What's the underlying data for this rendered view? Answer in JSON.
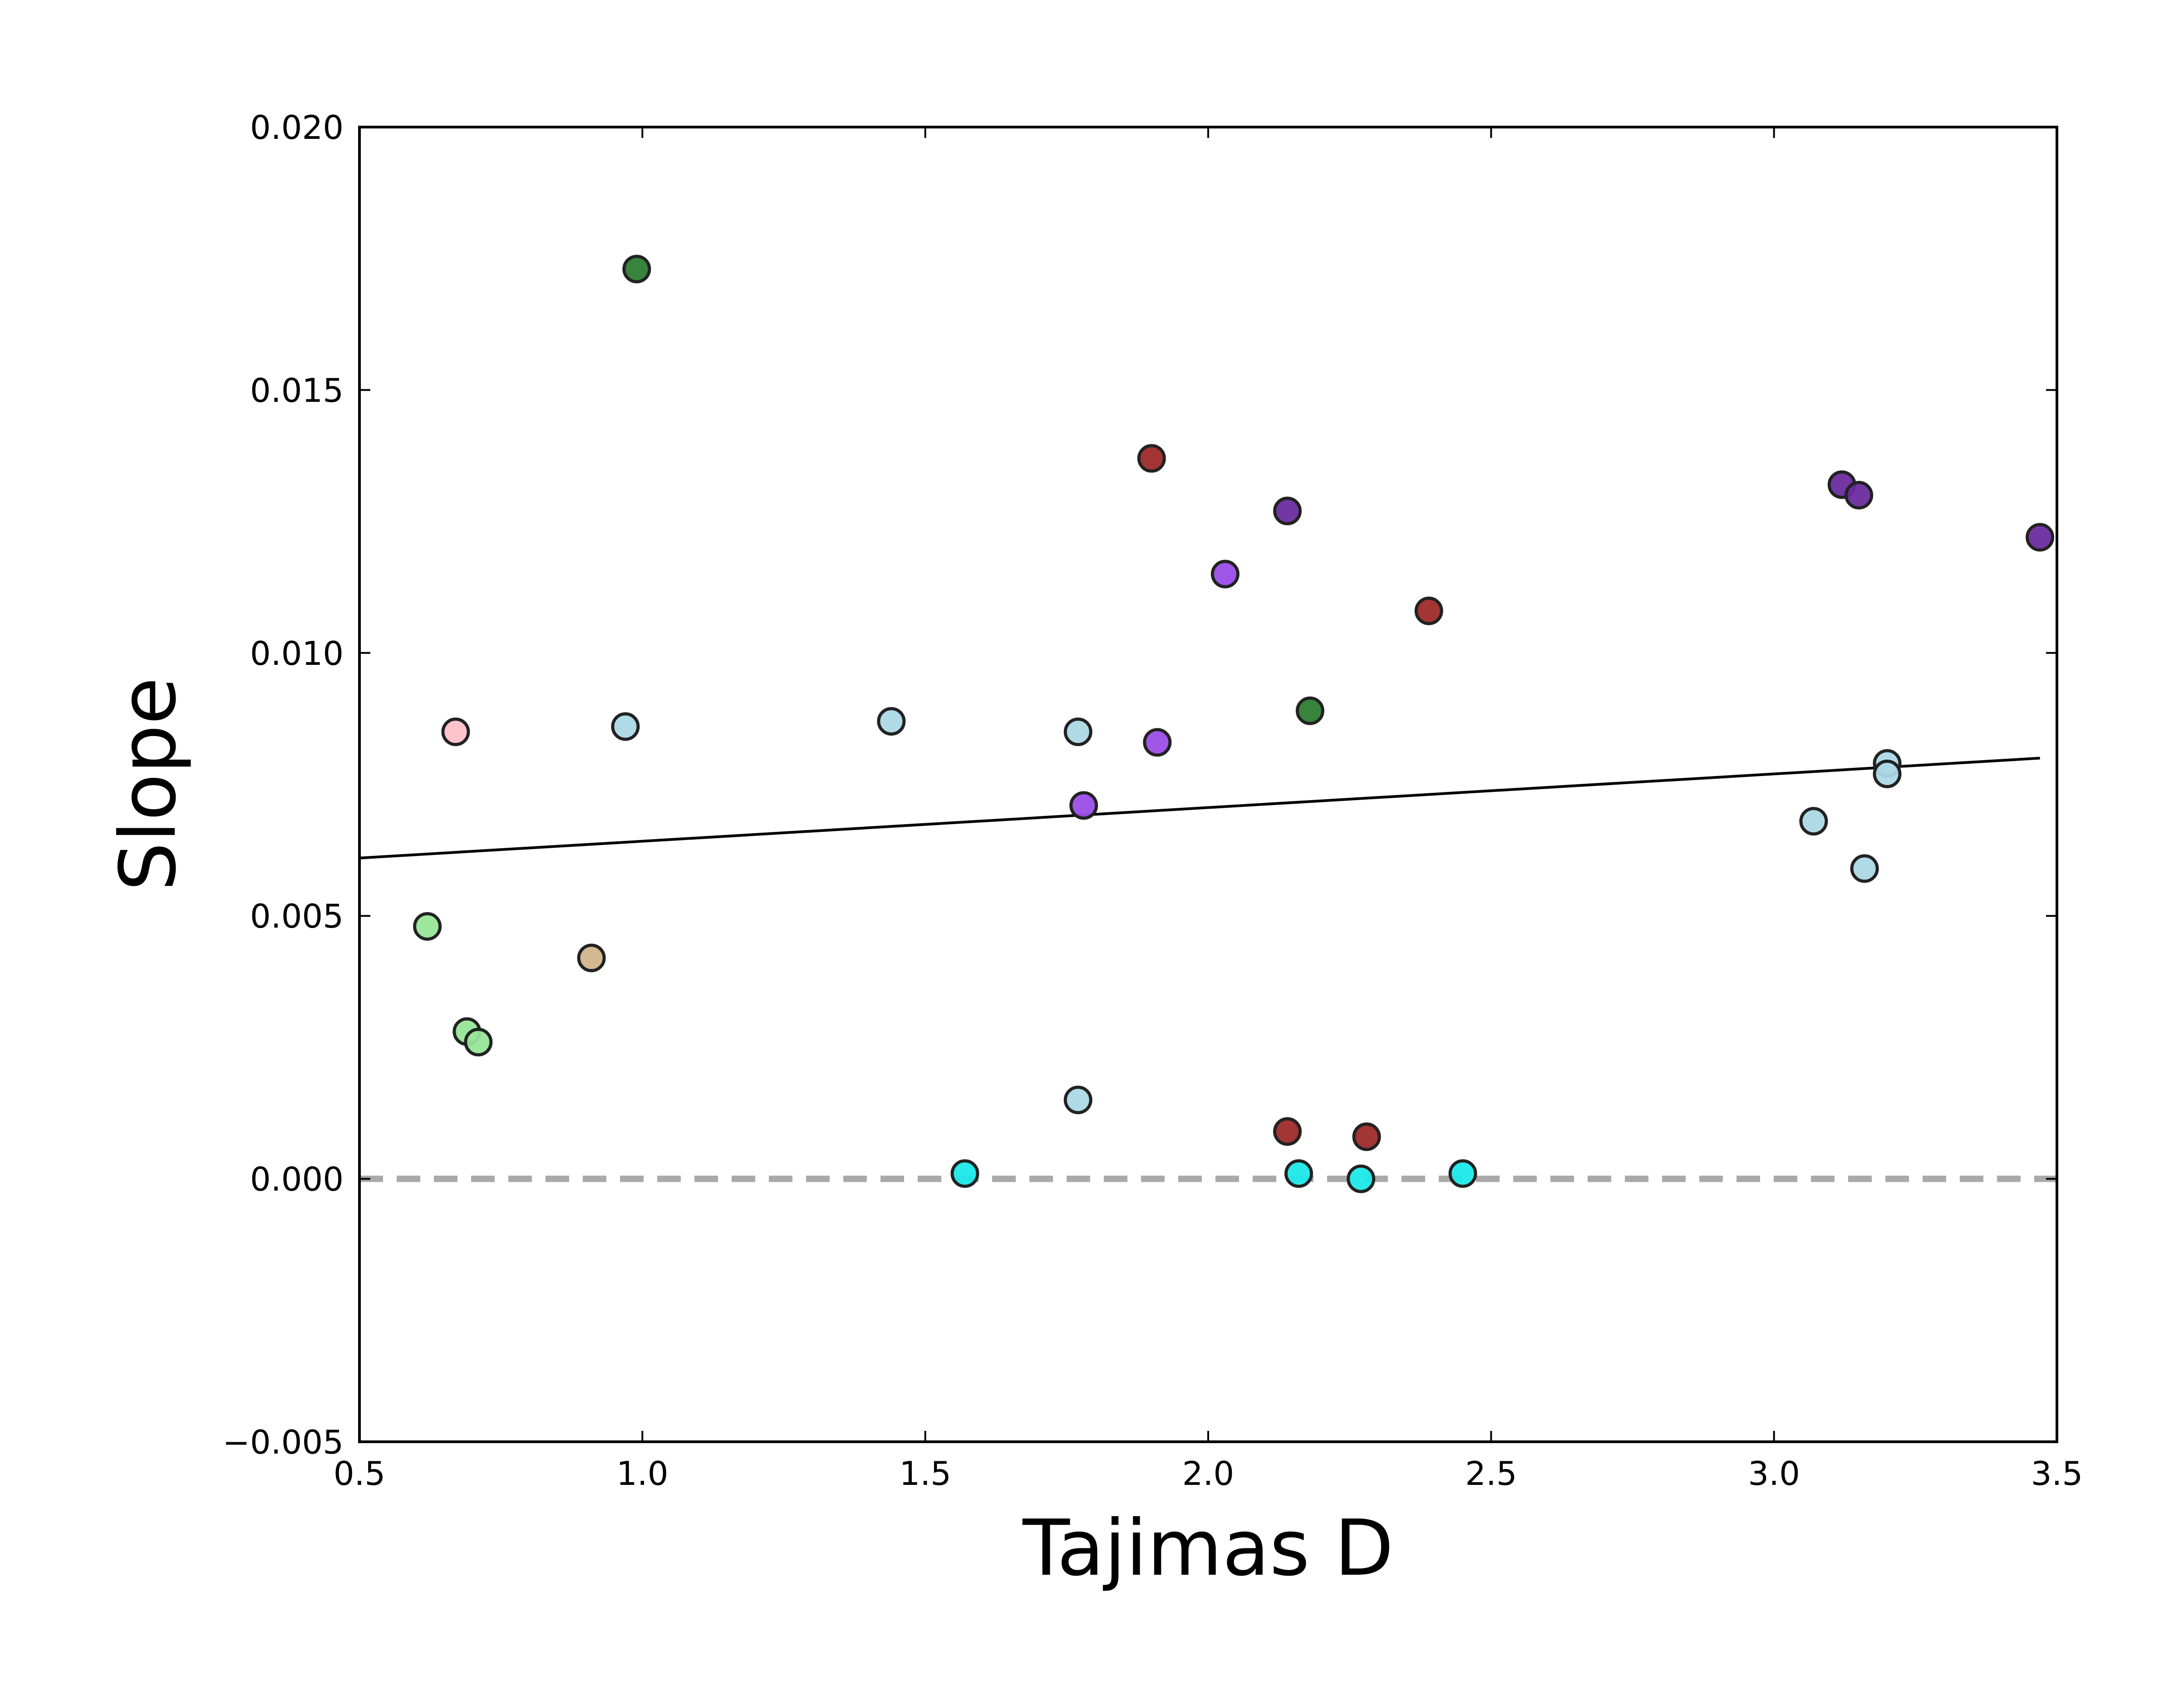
{
  "chart_data": {
    "type": "scatter",
    "xlabel": "Tajimas D",
    "ylabel": "Slope",
    "xlim": [
      0.5,
      3.5
    ],
    "ylim": [
      -0.005,
      0.02
    ],
    "xticks": [
      0.5,
      1.0,
      1.5,
      2.0,
      2.5,
      3.0,
      3.5
    ],
    "xtick_labels": [
      "0.5",
      "1.0",
      "1.5",
      "2.0",
      "2.5",
      "3.0",
      "3.5"
    ],
    "yticks": [
      -0.005,
      0.0,
      0.005,
      0.01,
      0.015,
      0.02
    ],
    "ytick_labels": [
      "−0.005",
      "0.000",
      "0.005",
      "0.010",
      "0.015",
      "0.020"
    ],
    "grid": false,
    "legend": "none",
    "reference_line": {
      "y": 0.0,
      "style": "dashed",
      "color": "#a9a9a9"
    },
    "trend_line": {
      "x": [
        0.5,
        3.47
      ],
      "y": [
        0.0061,
        0.008
      ],
      "color": "#000000"
    },
    "points": [
      {
        "x": 0.99,
        "y": 0.0173,
        "color": "#2e7d32"
      },
      {
        "x": 2.18,
        "y": 0.0089,
        "color": "#2e7d32"
      },
      {
        "x": 1.9,
        "y": 0.0137,
        "color": "#9e2a2a"
      },
      {
        "x": 2.39,
        "y": 0.0108,
        "color": "#9e2a2a"
      },
      {
        "x": 2.14,
        "y": 0.0009,
        "color": "#9e2a2a"
      },
      {
        "x": 2.28,
        "y": 0.0008,
        "color": "#9e2a2a"
      },
      {
        "x": 2.14,
        "y": 0.0127,
        "color": "#6a2ca0"
      },
      {
        "x": 3.12,
        "y": 0.0132,
        "color": "#6a2ca0"
      },
      {
        "x": 3.15,
        "y": 0.013,
        "color": "#6a2ca0"
      },
      {
        "x": 3.47,
        "y": 0.0122,
        "color": "#6a2ca0"
      },
      {
        "x": 2.03,
        "y": 0.0115,
        "color": "#9b4ee8"
      },
      {
        "x": 1.91,
        "y": 0.0083,
        "color": "#9b4ee8"
      },
      {
        "x": 1.78,
        "y": 0.0071,
        "color": "#9b4ee8"
      },
      {
        "x": 0.97,
        "y": 0.0086,
        "color": "#add8e6"
      },
      {
        "x": 1.44,
        "y": 0.0087,
        "color": "#add8e6"
      },
      {
        "x": 1.77,
        "y": 0.0085,
        "color": "#add8e6"
      },
      {
        "x": 1.77,
        "y": 0.0015,
        "color": "#add8e6"
      },
      {
        "x": 3.07,
        "y": 0.0068,
        "color": "#add8e6"
      },
      {
        "x": 3.16,
        "y": 0.0059,
        "color": "#add8e6"
      },
      {
        "x": 3.2,
        "y": 0.0079,
        "color": "#add8e6"
      },
      {
        "x": 3.2,
        "y": 0.0077,
        "color": "#add8e6"
      },
      {
        "x": 0.67,
        "y": 0.0085,
        "color": "#ffc0cb"
      },
      {
        "x": 0.62,
        "y": 0.0048,
        "color": "#98e598"
      },
      {
        "x": 0.69,
        "y": 0.0028,
        "color": "#98e598"
      },
      {
        "x": 0.71,
        "y": 0.0026,
        "color": "#98e598"
      },
      {
        "x": 0.91,
        "y": 0.0042,
        "color": "#d2b48c"
      },
      {
        "x": 1.57,
        "y": 0.0001,
        "color": "#1de9e9"
      },
      {
        "x": 2.16,
        "y": 0.0001,
        "color": "#1de9e9"
      },
      {
        "x": 2.27,
        "y": 0.0,
        "color": "#1de9e9"
      },
      {
        "x": 2.45,
        "y": 0.0001,
        "color": "#1de9e9"
      }
    ]
  }
}
